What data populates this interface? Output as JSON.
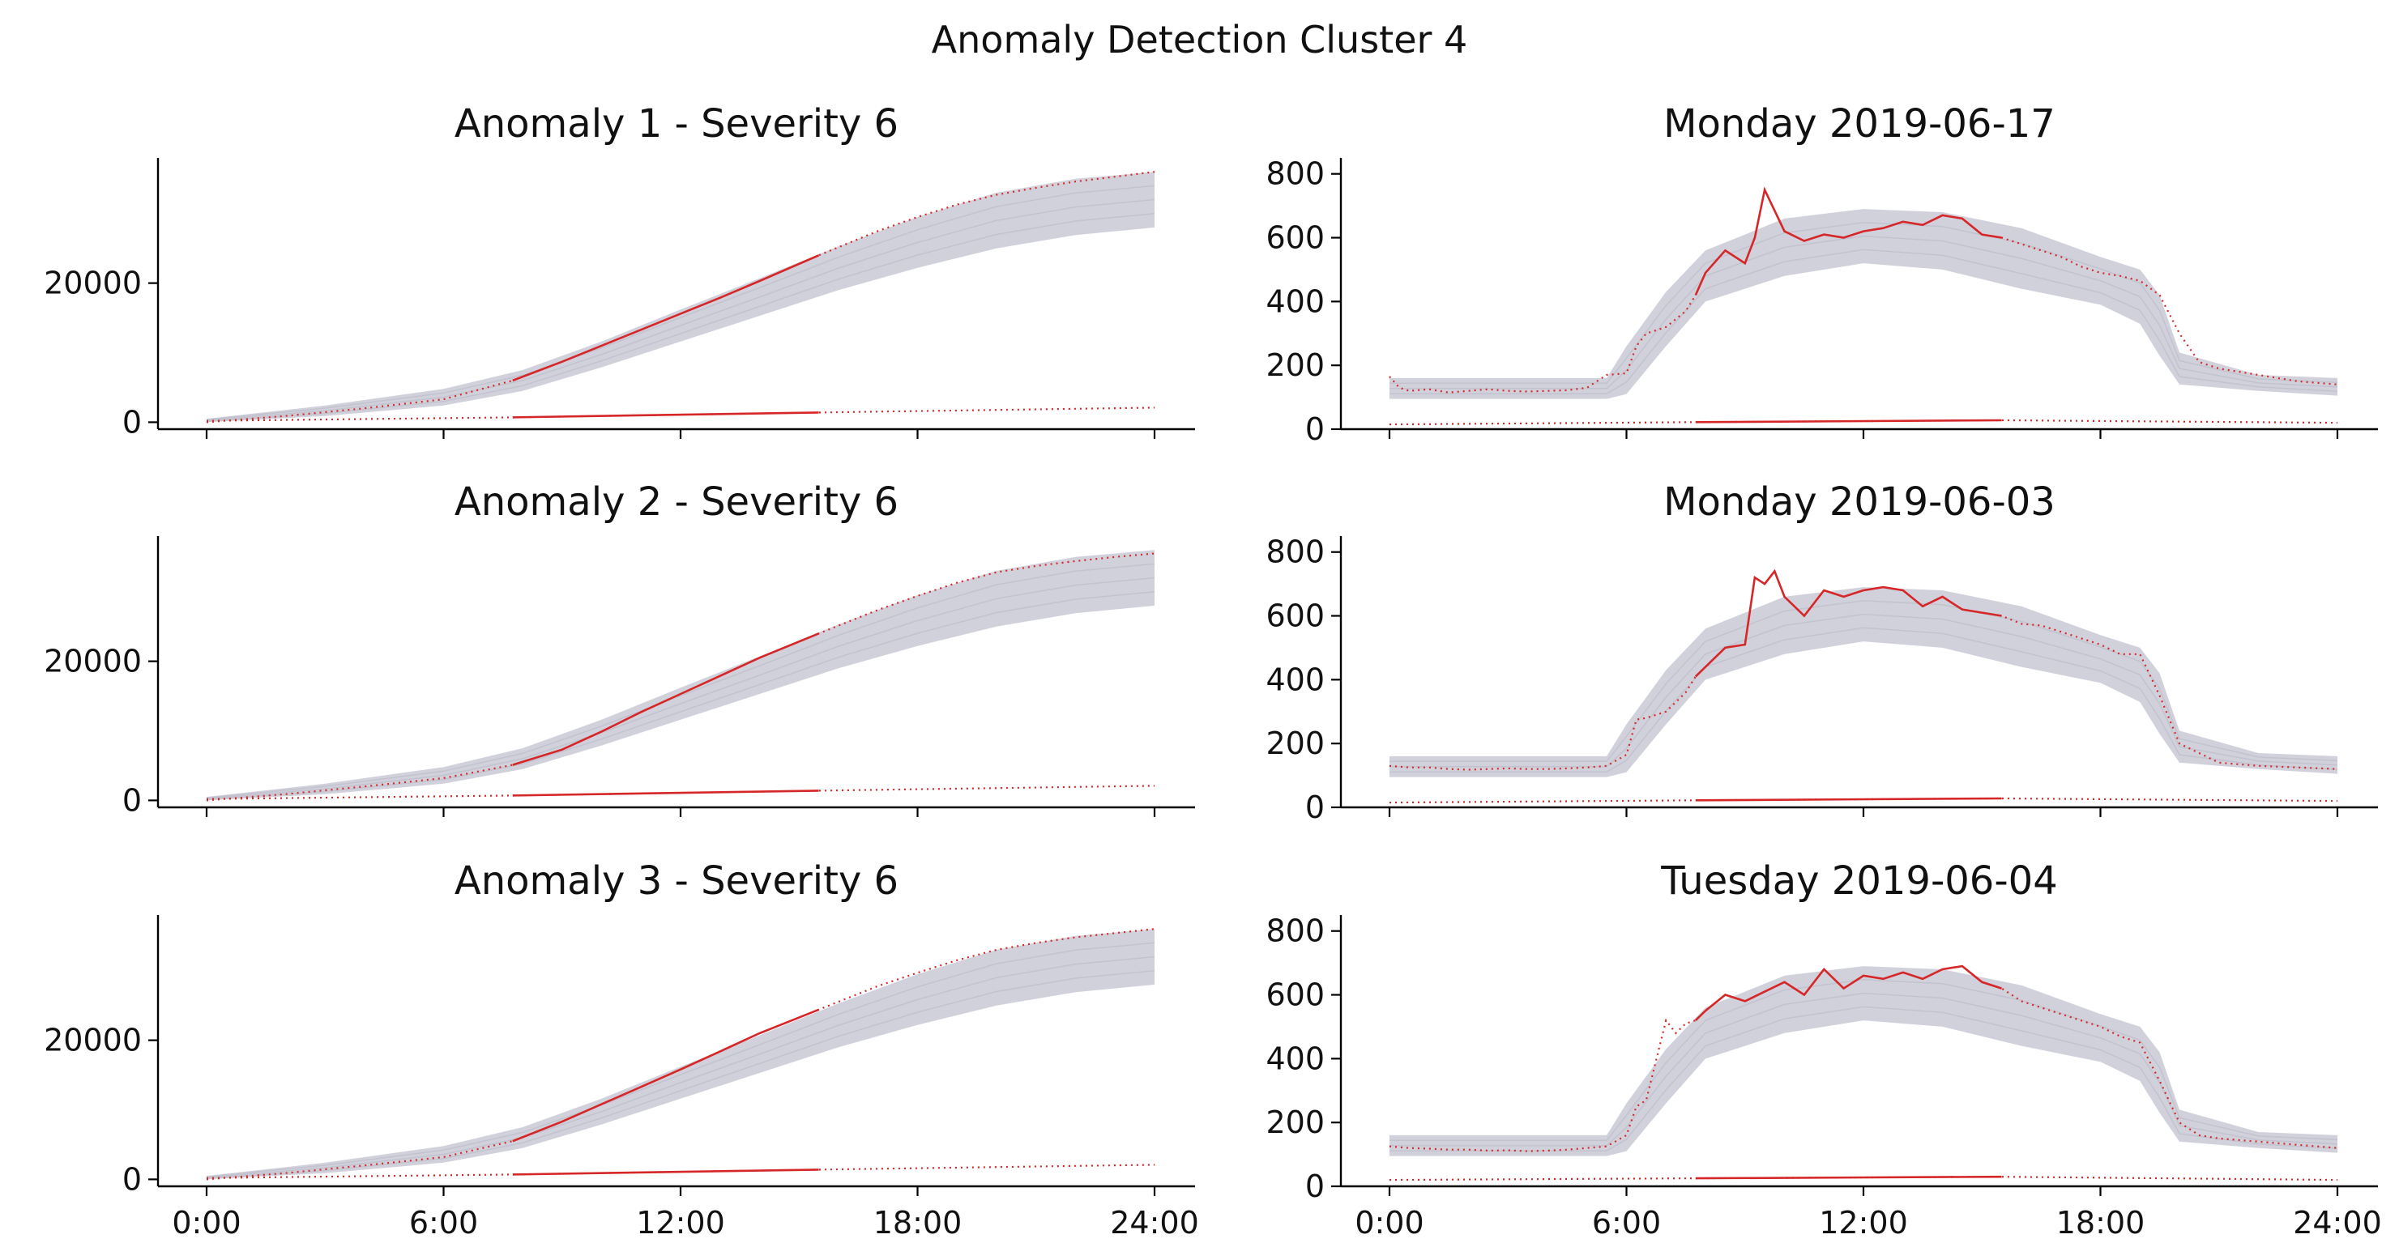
{
  "figure": {
    "title": "Anomaly Detection Cluster 4"
  },
  "colors": {
    "envelope": "#c9c9d6",
    "anomaly": "#d62728",
    "axis": "#000000"
  },
  "chart_data": [
    {
      "type": "line",
      "title": "Anomaly 1 - Severity 6",
      "kind": "cumulative",
      "xlim_hours": [
        0,
        24
      ],
      "ylim": [
        -1000,
        38000
      ],
      "ytick_values": [
        0,
        20000
      ],
      "ytick_labels": [
        "0",
        "20000"
      ],
      "xtick_values": [
        0,
        6,
        12,
        18,
        24
      ],
      "xtick_labels": [
        "0:00",
        "6:00",
        "12:00",
        "18:00",
        "24:00"
      ],
      "show_xtick_labels": false,
      "anomaly_window_hours": [
        7.75,
        15.5
      ],
      "envelope_band": {
        "x": [
          0,
          3,
          6,
          8,
          10,
          12,
          14,
          16,
          18,
          20,
          22,
          24
        ],
        "lower": [
          0,
          900,
          2400,
          4500,
          7900,
          11600,
          15300,
          19000,
          22200,
          25000,
          26900,
          28000
        ],
        "upper": [
          500,
          2400,
          4800,
          7500,
          11600,
          16200,
          20700,
          25300,
          29500,
          33000,
          35000,
          36000
        ]
      },
      "series": [
        {
          "role": "anomaly-cumulative",
          "x": [
            0,
            2,
            4,
            6,
            7.75,
            9,
            10,
            11,
            12,
            13,
            14,
            15.5,
            17,
            18,
            19,
            20,
            21,
            22,
            23,
            24
          ],
          "y": [
            0,
            900,
            2000,
            3300,
            6000,
            8700,
            11000,
            13300,
            15600,
            17900,
            20300,
            24000,
            27500,
            29500,
            31300,
            32700,
            33700,
            34600,
            35300,
            36000
          ]
        },
        {
          "role": "anomaly-score",
          "x": [
            0,
            7.75,
            15.5,
            24
          ],
          "y": [
            200,
            700,
            1400,
            2100
          ]
        }
      ]
    },
    {
      "type": "line",
      "title": "Monday 2019-06-17",
      "kind": "daily",
      "xlim_hours": [
        0,
        24
      ],
      "ylim": [
        0,
        850
      ],
      "ytick_values": [
        0,
        200,
        400,
        600,
        800
      ],
      "ytick_labels": [
        "0",
        "200",
        "400",
        "600",
        "800"
      ],
      "xtick_values": [
        0,
        6,
        12,
        18,
        24
      ],
      "xtick_labels": [
        "0:00",
        "6:00",
        "12:00",
        "18:00",
        "24:00"
      ],
      "show_xtick_labels": false,
      "anomaly_window_hours": [
        7.75,
        15.5
      ],
      "envelope_band": {
        "x": [
          0,
          5.5,
          6,
          7,
          8,
          10,
          12,
          14,
          16,
          18,
          19,
          19.5,
          20,
          22,
          24
        ],
        "lower": [
          95,
          95,
          110,
          260,
          400,
          480,
          520,
          500,
          440,
          390,
          330,
          230,
          140,
          120,
          105
        ],
        "upper": [
          160,
          160,
          260,
          430,
          560,
          660,
          690,
          680,
          630,
          540,
          500,
          420,
          240,
          170,
          160
        ]
      },
      "series": [
        {
          "role": "anomaly-daily",
          "x": [
            0,
            0.25,
            0.5,
            1,
            1.5,
            2,
            2.5,
            3,
            3.5,
            4,
            4.5,
            5,
            5.5,
            6,
            6.25,
            6.5,
            7,
            7.5,
            7.75,
            8,
            8.5,
            9,
            9.25,
            9.5,
            10,
            10.5,
            11,
            11.5,
            12,
            12.5,
            13,
            13.5,
            14,
            14.5,
            15,
            15.5,
            16,
            16.5,
            17,
            17.5,
            18,
            18.5,
            19,
            19.5,
            20,
            20.5,
            21,
            22,
            23,
            24
          ],
          "y": [
            165,
            130,
            120,
            125,
            115,
            120,
            125,
            120,
            118,
            120,
            122,
            130,
            170,
            175,
            260,
            300,
            320,
            370,
            420,
            490,
            560,
            520,
            600,
            750,
            620,
            590,
            610,
            600,
            620,
            630,
            650,
            640,
            670,
            660,
            610,
            600,
            580,
            560,
            540,
            510,
            490,
            480,
            465,
            420,
            300,
            210,
            190,
            170,
            150,
            140
          ]
        },
        {
          "role": "anomaly-score",
          "x": [
            0,
            7.75,
            15.5,
            24
          ],
          "y": [
            15,
            22,
            28,
            20
          ]
        }
      ]
    },
    {
      "type": "line",
      "title": "Anomaly 2 - Severity 6",
      "kind": "cumulative",
      "xlim_hours": [
        0,
        24
      ],
      "ylim": [
        -1000,
        38000
      ],
      "ytick_values": [
        0,
        20000
      ],
      "ytick_labels": [
        "0",
        "20000"
      ],
      "xtick_values": [
        0,
        6,
        12,
        18,
        24
      ],
      "xtick_labels": [
        "0:00",
        "6:00",
        "12:00",
        "18:00",
        "24:00"
      ],
      "show_xtick_labels": false,
      "anomaly_window_hours": [
        7.75,
        15.5
      ],
      "envelope_band": {
        "x": [
          0,
          3,
          6,
          8,
          10,
          12,
          14,
          16,
          18,
          20,
          22,
          24
        ],
        "lower": [
          0,
          900,
          2400,
          4500,
          7900,
          11600,
          15300,
          19000,
          22200,
          25000,
          26900,
          28000
        ],
        "upper": [
          500,
          2400,
          4800,
          7500,
          11600,
          16200,
          20700,
          25300,
          29500,
          33000,
          35000,
          36000
        ]
      },
      "series": [
        {
          "role": "anomaly-cumulative",
          "x": [
            0,
            2,
            4,
            6,
            7.75,
            9,
            10,
            11,
            12,
            13,
            14,
            15.5,
            17,
            18,
            19,
            20,
            21,
            22,
            23,
            24
          ],
          "y": [
            0,
            900,
            2000,
            3200,
            5100,
            7300,
            9900,
            12700,
            15300,
            17900,
            20500,
            24000,
            27400,
            29400,
            31300,
            32800,
            33700,
            34400,
            35000,
            35500
          ]
        },
        {
          "role": "anomaly-score",
          "x": [
            0,
            7.75,
            15.5,
            24
          ],
          "y": [
            200,
            700,
            1400,
            2100
          ]
        }
      ]
    },
    {
      "type": "line",
      "title": "Monday 2019-06-03",
      "kind": "daily",
      "xlim_hours": [
        0,
        24
      ],
      "ylim": [
        0,
        850
      ],
      "ytick_values": [
        0,
        200,
        400,
        600,
        800
      ],
      "ytick_labels": [
        "0",
        "200",
        "400",
        "600",
        "800"
      ],
      "xtick_values": [
        0,
        6,
        12,
        18,
        24
      ],
      "xtick_labels": [
        "0:00",
        "6:00",
        "12:00",
        "18:00",
        "24:00"
      ],
      "show_xtick_labels": false,
      "anomaly_window_hours": [
        7.75,
        15.5
      ],
      "envelope_band": {
        "x": [
          0,
          5.5,
          6,
          7,
          8,
          10,
          12,
          14,
          16,
          18,
          19,
          19.5,
          20,
          22,
          24
        ],
        "lower": [
          95,
          95,
          110,
          260,
          400,
          480,
          520,
          500,
          440,
          390,
          330,
          230,
          140,
          120,
          105
        ],
        "upper": [
          160,
          160,
          260,
          430,
          560,
          660,
          690,
          680,
          630,
          540,
          500,
          420,
          240,
          170,
          160
        ]
      },
      "series": [
        {
          "role": "anomaly-daily",
          "x": [
            0,
            0.5,
            1,
            1.5,
            2,
            2.5,
            3,
            3.5,
            4,
            4.5,
            5,
            5.5,
            6,
            6.25,
            6.5,
            7,
            7.5,
            7.75,
            8,
            8.5,
            9,
            9.25,
            9.5,
            9.75,
            10,
            10.5,
            11,
            11.5,
            12,
            12.5,
            13,
            13.5,
            14,
            14.5,
            15,
            15.5,
            16,
            16.5,
            17,
            17.5,
            18,
            18.5,
            19,
            19.5,
            20,
            20.5,
            21,
            22,
            23,
            24
          ],
          "y": [
            130,
            125,
            125,
            120,
            118,
            120,
            122,
            120,
            120,
            122,
            125,
            130,
            165,
            275,
            280,
            300,
            360,
            410,
            440,
            500,
            510,
            720,
            700,
            740,
            660,
            600,
            680,
            660,
            680,
            690,
            680,
            630,
            660,
            620,
            610,
            600,
            575,
            570,
            550,
            530,
            510,
            480,
            480,
            350,
            200,
            170,
            140,
            130,
            125,
            120
          ]
        },
        {
          "role": "anomaly-score",
          "x": [
            0,
            7.75,
            15.5,
            24
          ],
          "y": [
            15,
            22,
            28,
            20
          ]
        }
      ]
    },
    {
      "type": "line",
      "title": "Anomaly 3 - Severity 6",
      "kind": "cumulative",
      "xlim_hours": [
        0,
        24
      ],
      "ylim": [
        -1000,
        38000
      ],
      "ytick_values": [
        0,
        20000
      ],
      "ytick_labels": [
        "0",
        "20000"
      ],
      "xtick_values": [
        0,
        6,
        12,
        18,
        24
      ],
      "xtick_labels": [
        "0:00",
        "6:00",
        "12:00",
        "18:00",
        "24:00"
      ],
      "show_xtick_labels": true,
      "anomaly_window_hours": [
        7.75,
        15.5
      ],
      "envelope_band": {
        "x": [
          0,
          3,
          6,
          8,
          10,
          12,
          14,
          16,
          18,
          20,
          22,
          24
        ],
        "lower": [
          0,
          900,
          2400,
          4500,
          7900,
          11600,
          15300,
          19000,
          22200,
          25000,
          26900,
          28000
        ],
        "upper": [
          500,
          2400,
          4800,
          7500,
          11600,
          16200,
          20700,
          25300,
          29500,
          33000,
          35000,
          36000
        ]
      },
      "series": [
        {
          "role": "anomaly-cumulative",
          "x": [
            0,
            2,
            4,
            6,
            7.75,
            9,
            10,
            11,
            12,
            13,
            14,
            15.5,
            17,
            18,
            19,
            20,
            21,
            22,
            23,
            24
          ],
          "y": [
            0,
            900,
            2000,
            3200,
            5500,
            8300,
            10800,
            13300,
            15800,
            18400,
            21000,
            24400,
            27800,
            29700,
            31500,
            33000,
            34000,
            34800,
            35400,
            36000
          ]
        },
        {
          "role": "anomaly-score",
          "x": [
            0,
            7.75,
            15.5,
            24
          ],
          "y": [
            200,
            700,
            1400,
            2100
          ]
        }
      ]
    },
    {
      "type": "line",
      "title": "Tuesday 2019-06-04",
      "kind": "daily",
      "xlim_hours": [
        0,
        24
      ],
      "ylim": [
        0,
        850
      ],
      "ytick_values": [
        0,
        200,
        400,
        600,
        800
      ],
      "ytick_labels": [
        "0",
        "200",
        "400",
        "600",
        "800"
      ],
      "xtick_values": [
        0,
        6,
        12,
        18,
        24
      ],
      "xtick_labels": [
        "0:00",
        "6:00",
        "12:00",
        "18:00",
        "24:00"
      ],
      "show_xtick_labels": true,
      "anomaly_window_hours": [
        7.75,
        15.5
      ],
      "envelope_band": {
        "x": [
          0,
          5.5,
          6,
          7,
          8,
          10,
          12,
          14,
          16,
          18,
          19,
          19.5,
          20,
          22,
          24
        ],
        "lower": [
          95,
          95,
          110,
          260,
          400,
          480,
          520,
          500,
          440,
          390,
          330,
          230,
          140,
          120,
          105
        ],
        "upper": [
          160,
          160,
          260,
          430,
          560,
          660,
          690,
          680,
          630,
          540,
          500,
          420,
          240,
          170,
          160
        ]
      },
      "series": [
        {
          "role": "anomaly-daily",
          "x": [
            0,
            0.5,
            1,
            1.5,
            2,
            2.5,
            3,
            3.5,
            4,
            4.5,
            5,
            5.5,
            6,
            6.25,
            6.5,
            7,
            7.25,
            7.5,
            7.75,
            8,
            8.5,
            9,
            9.5,
            10,
            10.5,
            11,
            11.5,
            12,
            12.5,
            13,
            13.5,
            14,
            14.5,
            15,
            15.5,
            16,
            16.5,
            17,
            17.5,
            18,
            18.5,
            19,
            19.5,
            20,
            20.5,
            21,
            22,
            23,
            24
          ],
          "y": [
            125,
            120,
            118,
            115,
            115,
            112,
            113,
            110,
            112,
            115,
            120,
            125,
            160,
            250,
            270,
            520,
            480,
            510,
            520,
            550,
            600,
            580,
            610,
            640,
            600,
            680,
            620,
            660,
            650,
            670,
            650,
            680,
            690,
            640,
            620,
            580,
            560,
            540,
            520,
            500,
            470,
            450,
            330,
            200,
            160,
            150,
            140,
            130,
            120
          ]
        },
        {
          "role": "anomaly-score",
          "x": [
            0,
            7.75,
            15.5,
            24
          ],
          "y": [
            20,
            25,
            30,
            20
          ]
        }
      ]
    }
  ]
}
